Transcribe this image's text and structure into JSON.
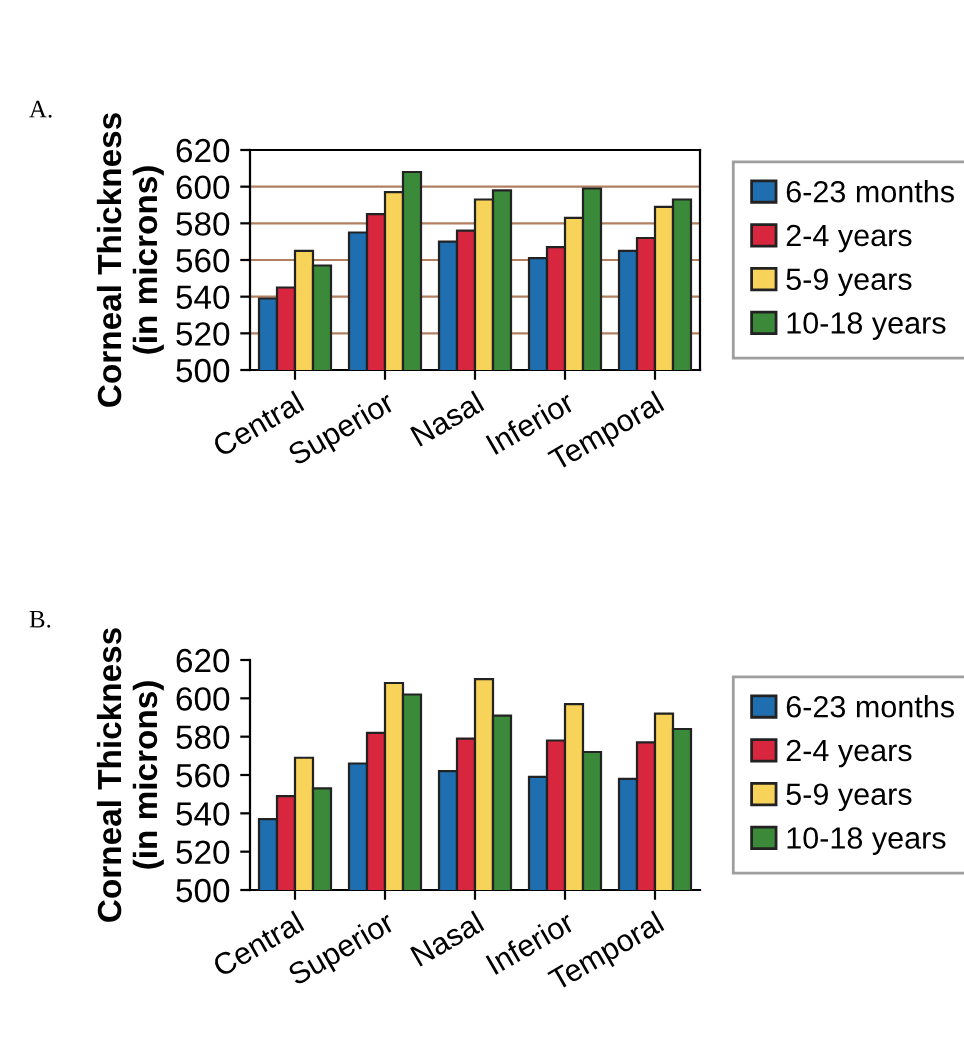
{
  "chart_data": [
    {
      "type": "bar",
      "title": "A.",
      "ylabel": "Corneal Thickness\n(in microns)",
      "categories": [
        "Central",
        "Superior",
        "Nasal",
        "Inferior",
        "Temporal"
      ],
      "series": [
        {
          "name": "6-23 months",
          "color": "#1f6fb0",
          "values": [
            539,
            575,
            570,
            561,
            565
          ]
        },
        {
          "name": "2-4 years",
          "color": "#d7263d",
          "values": [
            545,
            585,
            576,
            567,
            572
          ]
        },
        {
          "name": "5-9 years",
          "color": "#f7d35a",
          "values": [
            565,
            597,
            593,
            583,
            589
          ]
        },
        {
          "name": "10-18 years",
          "color": "#3a8a3a",
          "values": [
            557,
            608,
            598,
            599,
            593
          ]
        }
      ],
      "ylim": [
        500,
        620
      ],
      "yticks": [
        500,
        520,
        540,
        560,
        580,
        600,
        620
      ],
      "grid": "y",
      "legend": "right"
    },
    {
      "type": "bar",
      "title": "B.",
      "ylabel": "Corneal Thickness\n(in microns)",
      "categories": [
        "Central",
        "Superior",
        "Nasal",
        "Inferior",
        "Temporal"
      ],
      "series": [
        {
          "name": "6-23 months",
          "color": "#1f6fb0",
          "values": [
            537,
            566,
            562,
            559,
            558
          ]
        },
        {
          "name": "2-4 years",
          "color": "#d7263d",
          "values": [
            549,
            582,
            579,
            578,
            577
          ]
        },
        {
          "name": "5-9 years",
          "color": "#f7d35a",
          "values": [
            569,
            608,
            610,
            597,
            592
          ]
        },
        {
          "name": "10-18 years",
          "color": "#3a8a3a",
          "values": [
            553,
            602,
            591,
            572,
            584
          ]
        }
      ],
      "ylim": [
        500,
        620
      ],
      "yticks": [
        500,
        520,
        540,
        560,
        580,
        600,
        620
      ],
      "legend": "right"
    }
  ]
}
